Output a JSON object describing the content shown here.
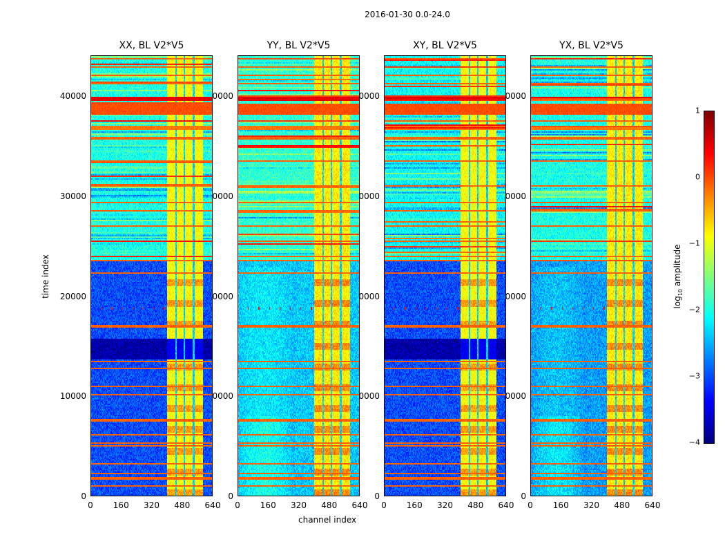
{
  "chart_data": {
    "type": "heatmap",
    "title": "2016-01-30 0.0-24.0",
    "xlabel": "channel index",
    "ylabel": "time index",
    "xlim": [
      0,
      640
    ],
    "ylim": [
      0,
      44100
    ],
    "xticks": [
      "0",
      "160",
      "320",
      "480",
      "640"
    ],
    "yticks": [
      "0",
      "10000",
      "20000",
      "30000",
      "40000"
    ],
    "colormap": "jet",
    "colorbar": {
      "label_prefix": "log",
      "label_sub": "10",
      "label_suffix": " amplitude",
      "range": [
        -4,
        1
      ],
      "ticks": [
        "1",
        "0",
        "−1",
        "−2",
        "−3",
        "−4"
      ]
    },
    "panels": [
      {
        "title": "XX, BL V2*V5",
        "background_low": -3.0,
        "background_high": -2.0,
        "dark_band": true,
        "band_level": -0.9
      },
      {
        "title": "YY, BL V2*V5",
        "background_low": -2.4,
        "background_high": -1.9,
        "dark_band": false,
        "band_level": -0.8
      },
      {
        "title": "XY, BL V2*V5",
        "background_low": -3.0,
        "background_high": -2.1,
        "dark_band": true,
        "band_level": -0.9
      },
      {
        "title": "YX, BL V2*V5",
        "background_low": -2.6,
        "background_high": -2.0,
        "dark_band": false,
        "band_level": -0.8
      }
    ],
    "bright_channel_range": [
      400,
      590
    ],
    "channel_gaps": [
      448,
      492,
      540
    ],
    "high_activity_time_range": [
      23500,
      44100
    ],
    "dark_time_range": [
      13700,
      15800
    ],
    "rfi_time_lines": [
      1000,
      1800,
      2300,
      3300,
      5000,
      5300,
      6200,
      7600,
      7700,
      10200,
      11000,
      12800,
      13500,
      17000,
      22300,
      23600,
      24000,
      25500,
      27000,
      28600,
      29400,
      31000,
      33500,
      35800,
      37500,
      41300,
      42100,
      42900,
      43700
    ],
    "rfi_time_blocks": [
      [
        38200,
        39300,
        0.0
      ],
      [
        39500,
        40000,
        0.5
      ],
      [
        36700,
        37000,
        -0.2
      ]
    ]
  }
}
